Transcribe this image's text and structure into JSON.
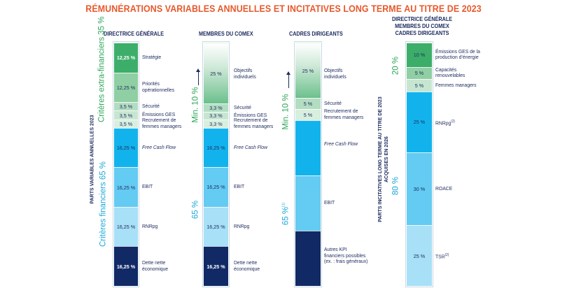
{
  "title": "RÉMUNÉRATIONS VARIABLES ANNUELLES ET INCITATIVES LONG TERME AU TITRE DE 2023",
  "side_labels": {
    "annual": "PARTS VARIABLES ANNUELLES 2023",
    "long_term_line1": "PARTS INCITATIVES LONG TERME AU TITRE DE 2023",
    "long_term_line2": "ACQUISES EN 2026"
  },
  "group_labels": {
    "extra_financial": "Critères extra-financiers 35 %",
    "financial": "Critères financiers 65 %",
    "min10": "Min. 10 %",
    "pct65": "65 %",
    "pct65_note": "65 %",
    "note_mark": "(1)",
    "pct20": "20 %",
    "pct80": "80 %"
  },
  "chart_data": [
    {
      "type": "stacked-bar",
      "name": "Directrice générale",
      "title": "DIRECTRICE GÉNÉRALE",
      "segments": [
        {
          "label": "Stratégie",
          "value": 12.25,
          "display": "12,25 %",
          "color": "#3dae6a",
          "italic": false
        },
        {
          "label": "Priorités opérationnelles",
          "value": 12.25,
          "display": "12,25 %",
          "color": "#8fcfa3",
          "italic": false
        },
        {
          "label": "Sécurité",
          "value": 3.5,
          "display": "3,5 %",
          "color": "#b3ddc1",
          "italic": false
        },
        {
          "label": "Émissions GES",
          "value": 3.5,
          "display": "3,5 %",
          "color": "#c7e6d1",
          "italic": false
        },
        {
          "label": "Recrutement de femmes managers",
          "value": 3.5,
          "display": "3,5 %",
          "color": "#d8eedf",
          "italic": false
        },
        {
          "label": "Free Cash Flow",
          "value": 16.25,
          "display": "16,25 %",
          "color": "#12b3ec",
          "italic": true
        },
        {
          "label": "EBIT",
          "value": 16.25,
          "display": "16,25 %",
          "color": "#64cbf2",
          "italic": false
        },
        {
          "label": "RNRpg",
          "value": 16.25,
          "display": "16,25 %",
          "color": "#a7e0f7",
          "italic": false
        },
        {
          "label": "Dette nette économique",
          "value": 16.25,
          "display": "16,25 %",
          "color": "#112a66",
          "italic": false
        }
      ]
    },
    {
      "type": "stacked-bar",
      "name": "Membres du Comex",
      "title": "MEMBRES DU COMEX",
      "segments": [
        {
          "label": "Objectifs individuels",
          "value": 25,
          "display": "25 %",
          "color": "gradient",
          "italic": false
        },
        {
          "label": "Sécurité",
          "value": 3.3,
          "display": "3,3 %",
          "color": "#b3ddc1",
          "italic": false
        },
        {
          "label": "Émissions GES",
          "value": 3.3,
          "display": "3,3 %",
          "color": "#c7e6d1",
          "italic": false
        },
        {
          "label": "Recrutement de femmes managers",
          "value": 3.3,
          "display": "3,3 %",
          "color": "#d8eedf",
          "italic": false
        },
        {
          "label": "Free Cash Flow",
          "value": 16.25,
          "display": "16,25 %",
          "color": "#12b3ec",
          "italic": true
        },
        {
          "label": "EBIT",
          "value": 16.25,
          "display": "16,25 %",
          "color": "#64cbf2",
          "italic": false
        },
        {
          "label": "RNRpg",
          "value": 16.25,
          "display": "16,25 %",
          "color": "#a7e0f7",
          "italic": false
        },
        {
          "label": "Dette nette économique",
          "value": 16.25,
          "display": "16,25 %",
          "color": "#112a66",
          "italic": false
        }
      ]
    },
    {
      "type": "stacked-bar",
      "name": "Cadres dirigeants",
      "title": "CADRES DIRIGEANTS",
      "segments": [
        {
          "label": "Objectifs individuels",
          "value": 25,
          "display": "25 %",
          "color": "gradient",
          "italic": false
        },
        {
          "label": "Sécurité",
          "value": 5,
          "display": "5 %",
          "color": "#b3ddc1",
          "italic": false
        },
        {
          "label": "Recrutement de femmes managers",
          "value": 5,
          "display": "5 %",
          "color": "#d8eedf",
          "italic": false
        },
        {
          "label": "Free Cash Flow",
          "value": 25,
          "display": "",
          "color": "#12b3ec",
          "italic": true
        },
        {
          "label": "EBIT",
          "value": 25,
          "display": "",
          "color": "#64cbf2",
          "italic": false
        },
        {
          "label": "Autres KPI financiers possibles (ex. : frais généraux)",
          "value": 25,
          "display": "",
          "color": "#112a66",
          "italic": false
        }
      ]
    },
    {
      "type": "stacked-bar",
      "name": "Long terme",
      "title": "DIRECTRICE GÉNÉRALE MEMBRES DU COMEX CADRES DIRIGEANTS",
      "title_lines": [
        "DIRECTRICE GÉNÉRALE",
        "MEMBRES DU COMEX",
        "CADRES DIRIGEANTS"
      ],
      "segments": [
        {
          "label": "Émissions GES de la production d’énergie",
          "value": 10,
          "display": "10 %",
          "color": "#3dae6a",
          "italic": false
        },
        {
          "label": "Capacités renouvelables",
          "value": 5,
          "display": "5 %",
          "color": "#8fcfa3",
          "italic": false
        },
        {
          "label": "Femmes managers",
          "value": 5,
          "display": "5 %",
          "color": "#c7e6d1",
          "italic": false
        },
        {
          "label": "RNRpg",
          "value": 25,
          "display": "25 %",
          "color": "#12b3ec",
          "italic": false,
          "note": "(2)"
        },
        {
          "label": "ROACE",
          "value": 30,
          "display": "30 %",
          "color": "#64cbf2",
          "italic": false
        },
        {
          "label": "TSR",
          "value": 25,
          "display": "25 %",
          "color": "#a7e0f7",
          "italic": false,
          "note": "(2)"
        }
      ]
    }
  ]
}
